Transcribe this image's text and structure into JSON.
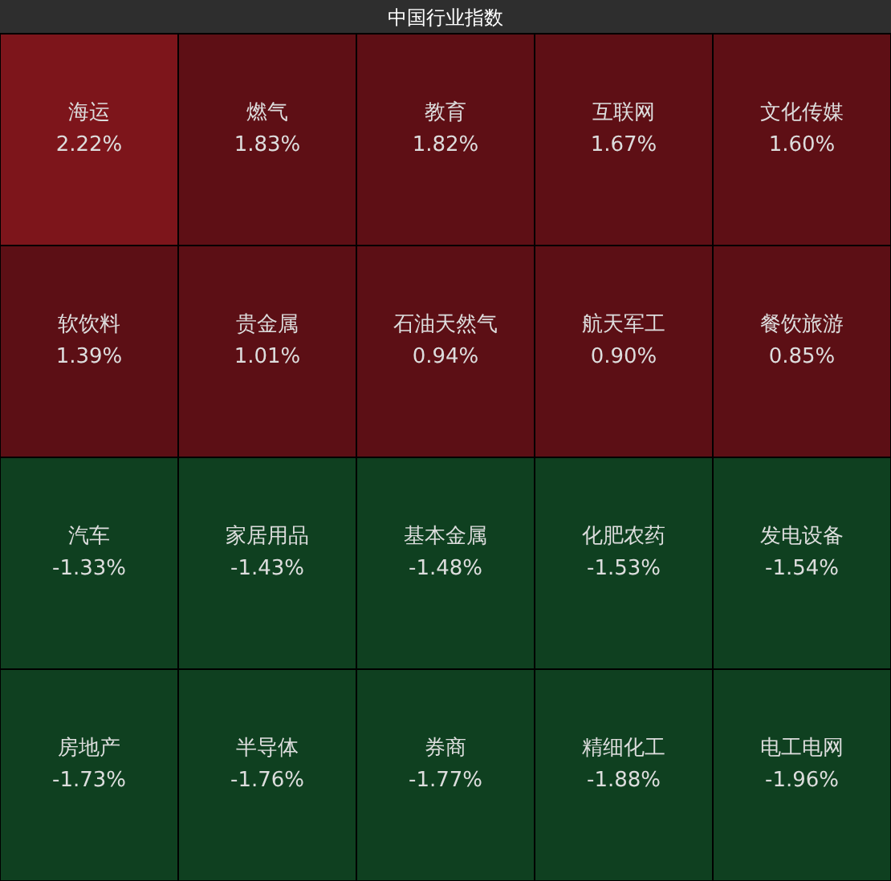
{
  "chart_data": {
    "type": "other",
    "title": "中国行业指数",
    "categories": [
      "海运",
      "燃气",
      "教育",
      "互联网",
      "文化传媒",
      "软饮料",
      "贵金属",
      "石油天然气",
      "航天军工",
      "餐饮旅游",
      "汽车",
      "家居用品",
      "基本金属",
      "化肥农药",
      "发电设备",
      "房地产",
      "半导体",
      "券商",
      "精细化工",
      "电工电网"
    ],
    "values": [
      2.22,
      1.83,
      1.82,
      1.67,
      1.6,
      1.39,
      1.01,
      0.94,
      0.9,
      0.85,
      -1.33,
      -1.43,
      -1.48,
      -1.53,
      -1.54,
      -1.73,
      -1.76,
      -1.77,
      -1.88,
      -1.96
    ],
    "value_labels": [
      "2.22%",
      "1.83%",
      "1.82%",
      "1.67%",
      "1.60%",
      "1.39%",
      "1.01%",
      "0.94%",
      "0.90%",
      "0.85%",
      "-1.33%",
      "-1.43%",
      "-1.48%",
      "-1.53%",
      "-1.54%",
      "-1.73%",
      "-1.76%",
      "-1.77%",
      "-1.88%",
      "-1.96%"
    ],
    "colors": [
      "#7d151b",
      "#5e0f15",
      "#5e0f15",
      "#5e0f15",
      "#5e0f15",
      "#5c0f15",
      "#5c0f15",
      "#5c0f15",
      "#5c0f15",
      "#5c0f15",
      "#0f4020",
      "#0f4020",
      "#0f4020",
      "#0f4020",
      "#0f4020",
      "#0f4020",
      "#0f4020",
      "#0f4020",
      "#0f4020",
      "#0f4020"
    ]
  }
}
